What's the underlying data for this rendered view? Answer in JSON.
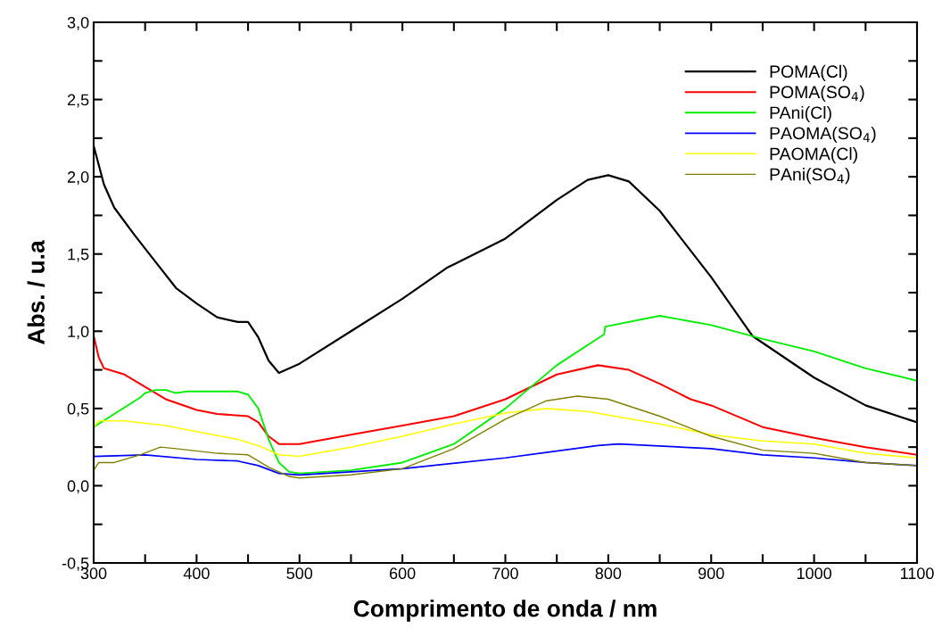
{
  "chart_data": {
    "type": "line",
    "xlabel": "Comprimento de onda / nm",
    "ylabel": "Abs. / u.a",
    "xlim": [
      300,
      1100
    ],
    "ylim": [
      -0.5,
      3.0
    ],
    "xticks": [
      300,
      {
        "value": 350,
        "label": null
      },
      400,
      {
        "value": 450,
        "label": null
      },
      500,
      {
        "value": 550,
        "label": null
      },
      600,
      {
        "value": 650,
        "label": null
      },
      700,
      {
        "value": 750,
        "label": null
      },
      800,
      {
        "value": 850,
        "label": null
      },
      900,
      {
        "value": 950,
        "label": null
      },
      1000,
      {
        "value": 1050,
        "label": null
      },
      1100
    ],
    "yticks": [
      {
        "value": -0.5,
        "label": "-0,5"
      },
      {
        "value": -0.25,
        "label": null
      },
      {
        "value": 0,
        "label": "0,0"
      },
      {
        "value": 0.25,
        "label": null
      },
      {
        "value": 0.5,
        "label": "0,5"
      },
      {
        "value": 0.75,
        "label": null
      },
      {
        "value": 1.0,
        "label": "1,0"
      },
      {
        "value": 1.25,
        "label": null
      },
      {
        "value": 1.5,
        "label": "1,5"
      },
      {
        "value": 1.75,
        "label": null
      },
      {
        "value": 2.0,
        "label": "2,0"
      },
      {
        "value": 2.25,
        "label": null
      },
      {
        "value": 2.5,
        "label": "2,5"
      },
      {
        "value": 2.75,
        "label": null
      },
      {
        "value": 3.0,
        "label": "3,0"
      }
    ],
    "grid": false,
    "legend": "top right",
    "marker": "none",
    "line_style": "solid",
    "series": [
      {
        "name": "POMA(Cl)",
        "color": "#000000",
        "x": [
          300,
          310,
          320,
          340,
          360,
          380,
          400,
          420,
          440,
          450,
          460,
          470,
          480,
          500,
          550,
          600,
          643,
          700,
          750,
          780,
          800,
          820,
          850,
          900,
          940,
          1000,
          1050,
          1100
        ],
        "values": [
          2.2,
          1.95,
          1.8,
          1.62,
          1.45,
          1.28,
          1.18,
          1.09,
          1.06,
          1.06,
          0.96,
          0.81,
          0.73,
          0.79,
          1.0,
          1.21,
          1.41,
          1.6,
          1.85,
          1.98,
          2.01,
          1.97,
          1.78,
          1.35,
          0.97,
          0.7,
          0.52,
          0.41
        ]
      },
      {
        "name": "POMA(SO$_{4}$)",
        "color": "#ff0000",
        "x": [
          300,
          305,
          310,
          330,
          350,
          370,
          400,
          420,
          450,
          460,
          470,
          480,
          500,
          550,
          600,
          650,
          700,
          750,
          790,
          820,
          850,
          880,
          900,
          950,
          1000,
          1050,
          1100
        ],
        "values": [
          0.97,
          0.83,
          0.76,
          0.72,
          0.64,
          0.56,
          0.49,
          0.465,
          0.45,
          0.41,
          0.32,
          0.27,
          0.27,
          0.33,
          0.39,
          0.45,
          0.56,
          0.72,
          0.78,
          0.75,
          0.66,
          0.56,
          0.52,
          0.38,
          0.31,
          0.25,
          0.2
        ]
      },
      {
        "name": "PAni(Cl)",
        "color": "#00ee00",
        "x": [
          300,
          345,
          350,
          360,
          370,
          380,
          390,
          440,
          450,
          460,
          470,
          480,
          490,
          500,
          550,
          600,
          650,
          700,
          750,
          796,
          797,
          850,
          900,
          950,
          1000,
          1050,
          1100
        ],
        "values": [
          0.38,
          0.57,
          0.6,
          0.62,
          0.62,
          0.6,
          0.61,
          0.61,
          0.59,
          0.5,
          0.3,
          0.15,
          0.09,
          0.08,
          0.1,
          0.15,
          0.27,
          0.5,
          0.78,
          0.98,
          1.03,
          1.1,
          1.04,
          0.95,
          0.87,
          0.76,
          0.68
        ]
      },
      {
        "name": "PAOMA(SO$_{4}$)",
        "color": "#0000ff",
        "x": [
          300,
          350,
          400,
          440,
          460,
          480,
          500,
          550,
          600,
          700,
          790,
          810,
          900,
          950,
          1000,
          1050,
          1100
        ],
        "values": [
          0.19,
          0.2,
          0.17,
          0.16,
          0.13,
          0.08,
          0.07,
          0.09,
          0.11,
          0.18,
          0.26,
          0.27,
          0.24,
          0.2,
          0.18,
          0.15,
          0.13
        ]
      },
      {
        "name": "PAOMA(Cl)",
        "color": "#ffff00",
        "x": [
          300,
          305,
          330,
          370,
          400,
          440,
          460,
          480,
          500,
          550,
          600,
          650,
          700,
          740,
          780,
          850,
          900,
          950,
          1000,
          1050,
          1100
        ],
        "values": [
          0.38,
          0.42,
          0.42,
          0.39,
          0.35,
          0.3,
          0.26,
          0.2,
          0.19,
          0.25,
          0.32,
          0.4,
          0.47,
          0.5,
          0.48,
          0.4,
          0.33,
          0.29,
          0.27,
          0.21,
          0.18
        ]
      },
      {
        "name": "PAni(SO$_{4}$)",
        "color": "#808000",
        "x": [
          300,
          305,
          320,
          345,
          365,
          380,
          420,
          450,
          470,
          490,
          500,
          550,
          600,
          650,
          700,
          740,
          770,
          800,
          850,
          900,
          950,
          1000,
          1050,
          1100
        ],
        "values": [
          0.1,
          0.15,
          0.15,
          0.2,
          0.25,
          0.24,
          0.21,
          0.2,
          0.12,
          0.06,
          0.05,
          0.07,
          0.11,
          0.24,
          0.43,
          0.55,
          0.58,
          0.56,
          0.45,
          0.32,
          0.23,
          0.21,
          0.15,
          0.13
        ]
      }
    ]
  }
}
